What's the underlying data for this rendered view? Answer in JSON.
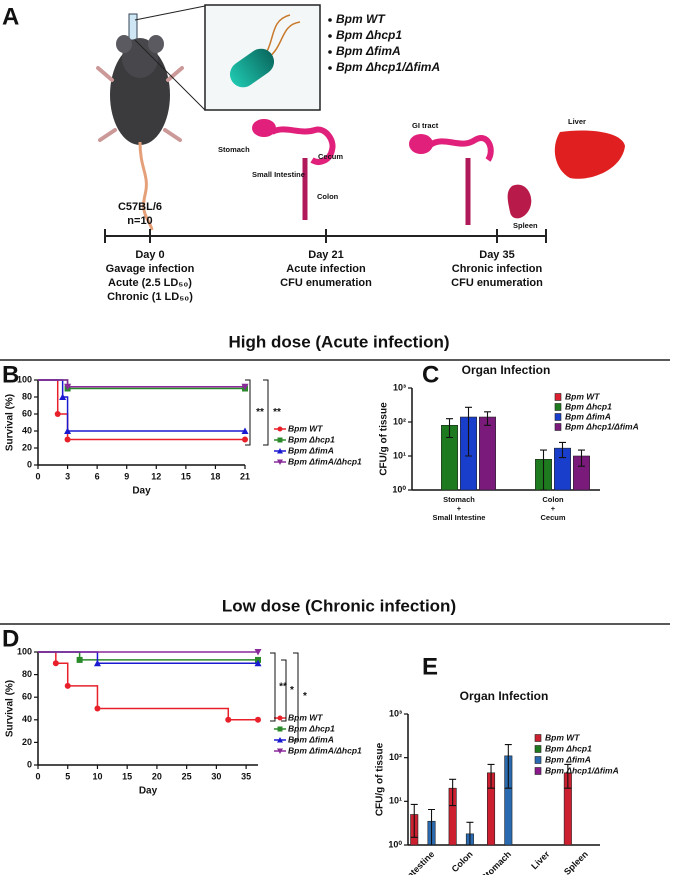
{
  "panel_labels": {
    "a": "A",
    "b": "B",
    "c": "C",
    "d": "D",
    "e": "E"
  },
  "panel_a": {
    "strains": [
      {
        "text": "Bpm WT",
        "color": "#e8202a"
      },
      {
        "text": "Bpm Δhcp1",
        "color": "#1e9a2a"
      },
      {
        "text": "Bpm ΔfimA",
        "color": "#1a3ecc"
      },
      {
        "text": "Bpm Δhcp1/ΔfimA",
        "color": "#7a2a9a"
      }
    ],
    "mouse": [
      "C57BL/6",
      "n=10"
    ],
    "organs": [
      "Stomach",
      "Small Intestine",
      "Cecum",
      "Colon",
      "GI tract",
      "Liver",
      "Spleen"
    ],
    "timeline": [
      {
        "day": "Day 0",
        "lines": [
          "Gavage infection",
          "Acute (2.5 LD₅₀)",
          "Chronic (1 LD₅₀)"
        ]
      },
      {
        "day": "Day 21",
        "lines": [
          "Acute infection",
          "CFU enumeration"
        ]
      },
      {
        "day": "Day 35",
        "lines": [
          "Chronic infection",
          "CFU enumeration"
        ]
      }
    ]
  },
  "section_titles": [
    "High dose (Acute infection)",
    "Low dose (Chronic infection)"
  ],
  "chart_data": [
    {
      "type": "line",
      "step": true,
      "xlabel": "Day",
      "ylabel": "Survival (%)",
      "xlim": [
        0,
        21
      ],
      "xticks": [
        0,
        3,
        6,
        9,
        12,
        15,
        18,
        21
      ],
      "ylim": [
        0,
        100
      ],
      "yticks": [
        0,
        20,
        40,
        60,
        80,
        100
      ],
      "series": [
        {
          "name": "Bpm WT",
          "color": "#e8202a",
          "marker": "circle",
          "x": [
            0,
            2,
            3,
            21
          ],
          "values": [
            100,
            60,
            30,
            30
          ]
        },
        {
          "name": "Bpm Δhcp1",
          "color": "#2a8a2a",
          "marker": "square",
          "x": [
            0,
            3,
            21
          ],
          "values": [
            100,
            90,
            90
          ]
        },
        {
          "name": "Bpm ΔfimA",
          "color": "#1a1ad0",
          "marker": "triangle",
          "x": [
            0,
            2.5,
            3,
            21
          ],
          "values": [
            100,
            80,
            40,
            40
          ]
        },
        {
          "name": "Bpm ΔfimA/Δhcp1",
          "color": "#8a2a9a",
          "marker": "triangle-down",
          "x": [
            0,
            3,
            21
          ],
          "values": [
            100,
            92,
            92
          ]
        }
      ],
      "annotations": [
        "**",
        "**"
      ]
    },
    {
      "type": "bar",
      "title": "Organ Infection",
      "ylabel": "CFU/g of tissue",
      "log": true,
      "categories": [
        [
          "Stomach",
          "+",
          "Small Intestine"
        ],
        [
          "Colon",
          "+",
          "Cecum"
        ]
      ],
      "ylim": [
        1,
        1000
      ],
      "yticks": [
        {
          "value": 1,
          "label": "10⁰"
        },
        {
          "value": 10,
          "label": "10¹"
        },
        {
          "value": 100,
          "label": "10²"
        },
        {
          "value": 1000,
          "label": "10³"
        }
      ],
      "series": [
        {
          "name": "Bpm WT",
          "color": "#dd2030",
          "values": [
            null,
            null
          ],
          "errors": [
            null,
            null
          ]
        },
        {
          "name": "Bpm Δhcp1",
          "color": "#1e7a1e",
          "values": [
            80,
            8
          ],
          "errors": [
            45,
            7
          ]
        },
        {
          "name": "Bpm ΔfimA",
          "color": "#1a3ecc",
          "values": [
            140,
            17
          ],
          "errors": [
            130,
            8
          ]
        },
        {
          "name": "Bpm Δhcp1/ΔfimA",
          "color": "#7a1a7a",
          "values": [
            140,
            10
          ],
          "errors": [
            60,
            5
          ]
        }
      ]
    },
    {
      "type": "line",
      "step": true,
      "xlabel": "Day",
      "ylabel": "Survival (%)",
      "xlim": [
        0,
        37
      ],
      "xticks": [
        0,
        5,
        10,
        15,
        20,
        25,
        30,
        35
      ],
      "ylim": [
        0,
        100
      ],
      "yticks": [
        0,
        20,
        40,
        60,
        80,
        100
      ],
      "series": [
        {
          "name": "Bpm WT",
          "color": "#e8202a",
          "marker": "circle",
          "x": [
            0,
            3,
            5,
            10,
            32,
            37
          ],
          "values": [
            100,
            90,
            70,
            50,
            40,
            40
          ]
        },
        {
          "name": "Bpm Δhcp1",
          "color": "#2a8a2a",
          "marker": "square",
          "x": [
            0,
            7,
            37
          ],
          "values": [
            100,
            93,
            93
          ]
        },
        {
          "name": "Bpm ΔfimA",
          "color": "#1a1ad0",
          "marker": "triangle",
          "x": [
            0,
            10,
            37
          ],
          "values": [
            100,
            90,
            90
          ]
        },
        {
          "name": "Bpm ΔfimA/Δhcp1",
          "color": "#8a2a9a",
          "marker": "triangle-down",
          "x": [
            0,
            37
          ],
          "values": [
            100,
            100
          ]
        }
      ],
      "annotations": [
        "**",
        "*",
        "*"
      ]
    },
    {
      "type": "bar",
      "title": "Organ Infection",
      "ylabel": "CFU/g of tissue",
      "log": true,
      "categories": [
        [
          "Small Intestine"
        ],
        [
          "Colon"
        ],
        [
          "Stomach"
        ],
        [
          "Liver"
        ],
        [
          "Spleen"
        ]
      ],
      "ylim": [
        1,
        1000
      ],
      "yticks": [
        {
          "value": 1,
          "label": "10⁰"
        },
        {
          "value": 10,
          "label": "10¹"
        },
        {
          "value": 100,
          "label": "10²"
        },
        {
          "value": 1000,
          "label": "10³"
        }
      ],
      "series": [
        {
          "name": "Bpm WT",
          "color": "#cc2030",
          "values": [
            5,
            20,
            45,
            null,
            45
          ],
          "errors": [
            3.5,
            12,
            25,
            null,
            25
          ]
        },
        {
          "name": "Bpm Δhcp1",
          "color": "#1e7a1e",
          "values": [
            null,
            null,
            null,
            null,
            null
          ],
          "errors": [
            null,
            null,
            null,
            null,
            null
          ]
        },
        {
          "name": "Bpm ΔfimA",
          "color": "#2a6ab0",
          "values": [
            3.5,
            1.8,
            110,
            null,
            null
          ],
          "errors": [
            3,
            1.5,
            90,
            null,
            null
          ]
        },
        {
          "name": "Bpm Δhcp1/ΔfimA",
          "color": "#8a1a8a",
          "values": [
            null,
            null,
            null,
            null,
            null
          ],
          "errors": [
            null,
            null,
            null,
            null,
            null
          ]
        }
      ]
    }
  ]
}
